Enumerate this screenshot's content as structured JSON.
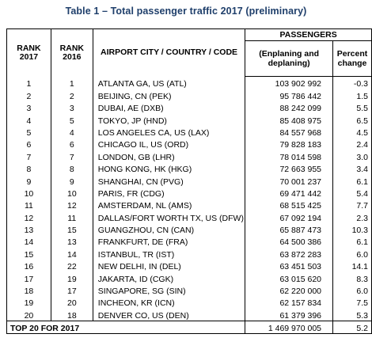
{
  "title": "Table 1 – Total passenger traffic 2017 (preliminary)",
  "headers": {
    "rank_2017": "RANK 2017",
    "rank_2016": "RANK 2016",
    "airport": "AIRPORT CITY / COUNTRY / CODE",
    "passengers_group": "PASSENGERS",
    "passengers": "(Enplaning and deplaning)",
    "percent_change": "Percent change"
  },
  "rows": [
    {
      "rank_2017": "1",
      "rank_2016": "1",
      "airport": "ATLANTA GA, US (ATL)",
      "passengers": "103 902 992",
      "change": "-0.3"
    },
    {
      "rank_2017": "2",
      "rank_2016": "2",
      "airport": "BEIJING, CN (PEK)",
      "passengers": "95 786 442",
      "change": "1.5"
    },
    {
      "rank_2017": "3",
      "rank_2016": "3",
      "airport": "DUBAI, AE (DXB)",
      "passengers": "88 242 099",
      "change": "5.5"
    },
    {
      "rank_2017": "4",
      "rank_2016": "5",
      "airport": "TOKYO, JP (HND)",
      "passengers": "85 408 975",
      "change": "6.5"
    },
    {
      "rank_2017": "5",
      "rank_2016": "4",
      "airport": "LOS ANGELES CA, US (LAX)",
      "passengers": "84 557 968",
      "change": "4.5"
    },
    {
      "rank_2017": "6",
      "rank_2016": "6",
      "airport": "CHICAGO IL, US (ORD)",
      "passengers": "79 828 183",
      "change": "2.4"
    },
    {
      "rank_2017": "7",
      "rank_2016": "7",
      "airport": "LONDON, GB (LHR)",
      "passengers": "78 014 598",
      "change": "3.0"
    },
    {
      "rank_2017": "8",
      "rank_2016": "8",
      "airport": "HONG KONG, HK (HKG)",
      "passengers": "72 663 955",
      "change": "3.4"
    },
    {
      "rank_2017": "9",
      "rank_2016": "9",
      "airport": "SHANGHAI, CN (PVG)",
      "passengers": "70 001 237",
      "change": "6.1"
    },
    {
      "rank_2017": "10",
      "rank_2016": "10",
      "airport": "PARIS, FR (CDG)",
      "passengers": "69 471 442",
      "change": "5.4"
    },
    {
      "rank_2017": "11",
      "rank_2016": "12",
      "airport": "AMSTERDAM, NL (AMS)",
      "passengers": "68 515 425",
      "change": "7.7"
    },
    {
      "rank_2017": "12",
      "rank_2016": "11",
      "airport": "DALLAS/FORT WORTH TX, US (DFW)",
      "passengers": "67 092 194",
      "change": "2.3"
    },
    {
      "rank_2017": "13",
      "rank_2016": "15",
      "airport": "GUANGZHOU, CN (CAN)",
      "passengers": "65 887 473",
      "change": "10.3"
    },
    {
      "rank_2017": "14",
      "rank_2016": "13",
      "airport": "FRANKFURT, DE (FRA)",
      "passengers": "64 500 386",
      "change": "6.1"
    },
    {
      "rank_2017": "15",
      "rank_2016": "14",
      "airport": "ISTANBUL, TR (IST)",
      "passengers": "63 872 283",
      "change": "6.0"
    },
    {
      "rank_2017": "16",
      "rank_2016": "22",
      "airport": "NEW DELHI, IN (DEL)",
      "passengers": "63 451 503",
      "change": "14.1"
    },
    {
      "rank_2017": "17",
      "rank_2016": "19",
      "airport": "JAKARTA, ID (CGK)",
      "passengers": "63 015 620",
      "change": "8.3"
    },
    {
      "rank_2017": "18",
      "rank_2016": "17",
      "airport": "SINGAPORE, SG (SIN)",
      "passengers": "62 220 000",
      "change": "6.0"
    },
    {
      "rank_2017": "19",
      "rank_2016": "20",
      "airport": "INCHEON, KR (ICN)",
      "passengers": "62 157 834",
      "change": "7.5"
    },
    {
      "rank_2017": "20",
      "rank_2016": "18",
      "airport": "DENVER CO, US (DEN)",
      "passengers": "61 379 396",
      "change": "5.3"
    }
  ],
  "total": {
    "label": "TOP 20 FOR 2017",
    "passengers": "1 469 970 005",
    "change": "5.2"
  }
}
